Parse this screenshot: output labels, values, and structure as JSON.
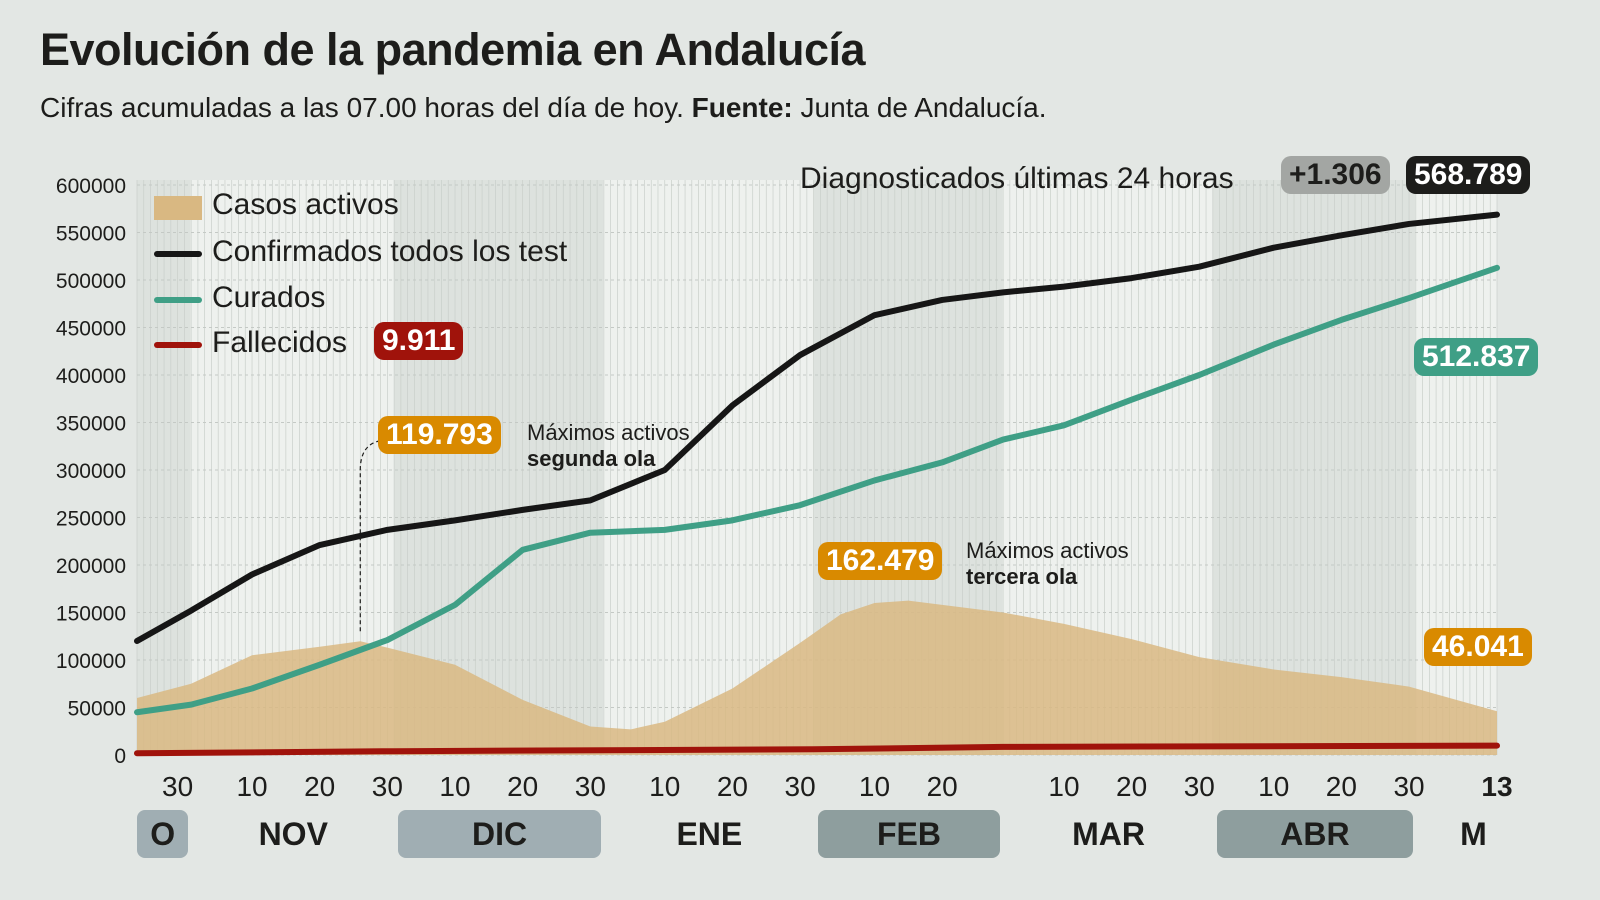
{
  "title": "Evolución de la pandemia en Andalucía",
  "subtitle": {
    "text": "Cifras acumuladas a las 07.00 horas del día de hoy.",
    "source_label": "Fuente:",
    "source": "Junta de Andalucía."
  },
  "header_stats": {
    "label": "Diagnosticados últimas 24 horas",
    "daily": "+1.306",
    "total": "568.789"
  },
  "colors": {
    "activos": "#d9b882",
    "confirmados": "#161616",
    "curados": "#3f9f86",
    "fallecidos": "#a0130b",
    "badge_orange": "#d98a00",
    "background": "#e3e7e4"
  },
  "chart_data": {
    "type": "line",
    "xlim": [
      "2020-10-24",
      "2021-05-13"
    ],
    "ylim": [
      0,
      600000
    ],
    "y_ticks": [
      "0",
      "50000",
      "100000",
      "150000",
      "200000",
      "250000",
      "300000",
      "350000",
      "400000",
      "450000",
      "500000",
      "550000",
      "600000"
    ],
    "x_ticks": [
      {
        "date": "2020-10-30",
        "label": "30"
      },
      {
        "date": "2020-11-10",
        "label": "10"
      },
      {
        "date": "2020-11-20",
        "label": "20"
      },
      {
        "date": "2020-11-30",
        "label": "30"
      },
      {
        "date": "2020-12-10",
        "label": "10"
      },
      {
        "date": "2020-12-20",
        "label": "20"
      },
      {
        "date": "2020-12-30",
        "label": "30"
      },
      {
        "date": "2021-01-10",
        "label": "10"
      },
      {
        "date": "2021-01-20",
        "label": "20"
      },
      {
        "date": "2021-01-30",
        "label": "30"
      },
      {
        "date": "2021-02-10",
        "label": "10"
      },
      {
        "date": "2021-02-20",
        "label": "20"
      },
      {
        "date": "2021-03-10",
        "label": "10"
      },
      {
        "date": "2021-03-20",
        "label": "20"
      },
      {
        "date": "2021-03-30",
        "label": "30"
      },
      {
        "date": "2021-04-10",
        "label": "10"
      },
      {
        "date": "2021-04-20",
        "label": "20"
      },
      {
        "date": "2021-04-30",
        "label": "30"
      },
      {
        "date": "2021-05-13",
        "label": "13"
      }
    ],
    "months": [
      {
        "label": "O",
        "start": "2020-10-24",
        "end": "2020-10-31",
        "shaded": true,
        "color": "#a0aeb3"
      },
      {
        "label": "NOV",
        "start": "2020-11-01",
        "end": "2020-11-30",
        "shaded": false
      },
      {
        "label": "DIC",
        "start": "2020-12-01",
        "end": "2020-12-31",
        "shaded": true,
        "color": "#a0aeb3"
      },
      {
        "label": "ENE",
        "start": "2021-01-01",
        "end": "2021-01-31",
        "shaded": false
      },
      {
        "label": "FEB",
        "start": "2021-02-01",
        "end": "2021-02-28",
        "shaded": true,
        "color": "#8e9e9e"
      },
      {
        "label": "MAR",
        "start": "2021-03-01",
        "end": "2021-03-31",
        "shaded": false
      },
      {
        "label": "ABR",
        "start": "2021-04-01",
        "end": "2021-04-30",
        "shaded": true,
        "color": "#8e9e9e"
      },
      {
        "label": "M",
        "start": "2021-05-01",
        "end": "2021-05-13",
        "shaded": false
      }
    ],
    "grid": true,
    "legend_position": "top-left",
    "series": [
      {
        "name": "Casos activos",
        "type": "area",
        "points": [
          [
            "2020-10-24",
            60000
          ],
          [
            "2020-11-01",
            75000
          ],
          [
            "2020-11-10",
            105000
          ],
          [
            "2020-11-20",
            114000
          ],
          [
            "2020-11-26",
            119793
          ],
          [
            "2020-11-30",
            113000
          ],
          [
            "2020-12-10",
            95000
          ],
          [
            "2020-12-20",
            58000
          ],
          [
            "2020-12-30",
            30000
          ],
          [
            "2021-01-05",
            27000
          ],
          [
            "2021-01-10",
            35000
          ],
          [
            "2021-01-20",
            70000
          ],
          [
            "2021-01-30",
            118000
          ],
          [
            "2021-02-05",
            148000
          ],
          [
            "2021-02-10",
            160000
          ],
          [
            "2021-02-15",
            162479
          ],
          [
            "2021-02-20",
            158000
          ],
          [
            "2021-03-01",
            150000
          ],
          [
            "2021-03-10",
            138000
          ],
          [
            "2021-03-20",
            122000
          ],
          [
            "2021-03-30",
            103000
          ],
          [
            "2021-04-10",
            90000
          ],
          [
            "2021-04-20",
            82000
          ],
          [
            "2021-04-30",
            72000
          ],
          [
            "2021-05-13",
            46041
          ]
        ]
      },
      {
        "name": "Confirmados todos los test",
        "type": "line",
        "points": [
          [
            "2020-10-24",
            120000
          ],
          [
            "2020-11-01",
            152000
          ],
          [
            "2020-11-10",
            190000
          ],
          [
            "2020-11-20",
            221000
          ],
          [
            "2020-11-30",
            237000
          ],
          [
            "2020-12-10",
            247000
          ],
          [
            "2020-12-20",
            258000
          ],
          [
            "2020-12-30",
            268000
          ],
          [
            "2021-01-10",
            300000
          ],
          [
            "2021-01-20",
            368000
          ],
          [
            "2021-01-30",
            421000
          ],
          [
            "2021-02-10",
            463000
          ],
          [
            "2021-02-20",
            479000
          ],
          [
            "2021-03-01",
            487000
          ],
          [
            "2021-03-10",
            493000
          ],
          [
            "2021-03-20",
            502000
          ],
          [
            "2021-03-30",
            514000
          ],
          [
            "2021-04-10",
            534000
          ],
          [
            "2021-04-20",
            547000
          ],
          [
            "2021-04-30",
            559000
          ],
          [
            "2021-05-13",
            568789
          ]
        ]
      },
      {
        "name": "Curados",
        "type": "line",
        "points": [
          [
            "2020-10-24",
            45000
          ],
          [
            "2020-11-01",
            53000
          ],
          [
            "2020-11-10",
            70000
          ],
          [
            "2020-11-20",
            95000
          ],
          [
            "2020-11-30",
            121000
          ],
          [
            "2020-12-10",
            158000
          ],
          [
            "2020-12-20",
            216000
          ],
          [
            "2020-12-30",
            234000
          ],
          [
            "2021-01-10",
            237000
          ],
          [
            "2021-01-20",
            247000
          ],
          [
            "2021-01-30",
            263000
          ],
          [
            "2021-02-10",
            289000
          ],
          [
            "2021-02-20",
            308000
          ],
          [
            "2021-03-01",
            332000
          ],
          [
            "2021-03-10",
            347000
          ],
          [
            "2021-03-20",
            374000
          ],
          [
            "2021-03-30",
            400000
          ],
          [
            "2021-04-10",
            432000
          ],
          [
            "2021-04-20",
            458000
          ],
          [
            "2021-04-30",
            481000
          ],
          [
            "2021-05-13",
            512837
          ]
        ]
      },
      {
        "name": "Fallecidos",
        "type": "line",
        "points": [
          [
            "2020-10-24",
            1800
          ],
          [
            "2020-12-01",
            4000
          ],
          [
            "2021-02-01",
            6000
          ],
          [
            "2021-03-01",
            8500
          ],
          [
            "2021-05-13",
            9911
          ]
        ]
      }
    ],
    "end_labels": {
      "fallecidos": "9.911",
      "curados": "512.837",
      "activos": "46.041"
    },
    "annotations": [
      {
        "value": "119.793",
        "date": "2020-11-26",
        "line1": "Máximos activos",
        "line2": "segunda ola"
      },
      {
        "value": "162.479",
        "date": "2021-02-15",
        "line1": "Máximos activos",
        "line2": "tercera ola"
      }
    ]
  }
}
